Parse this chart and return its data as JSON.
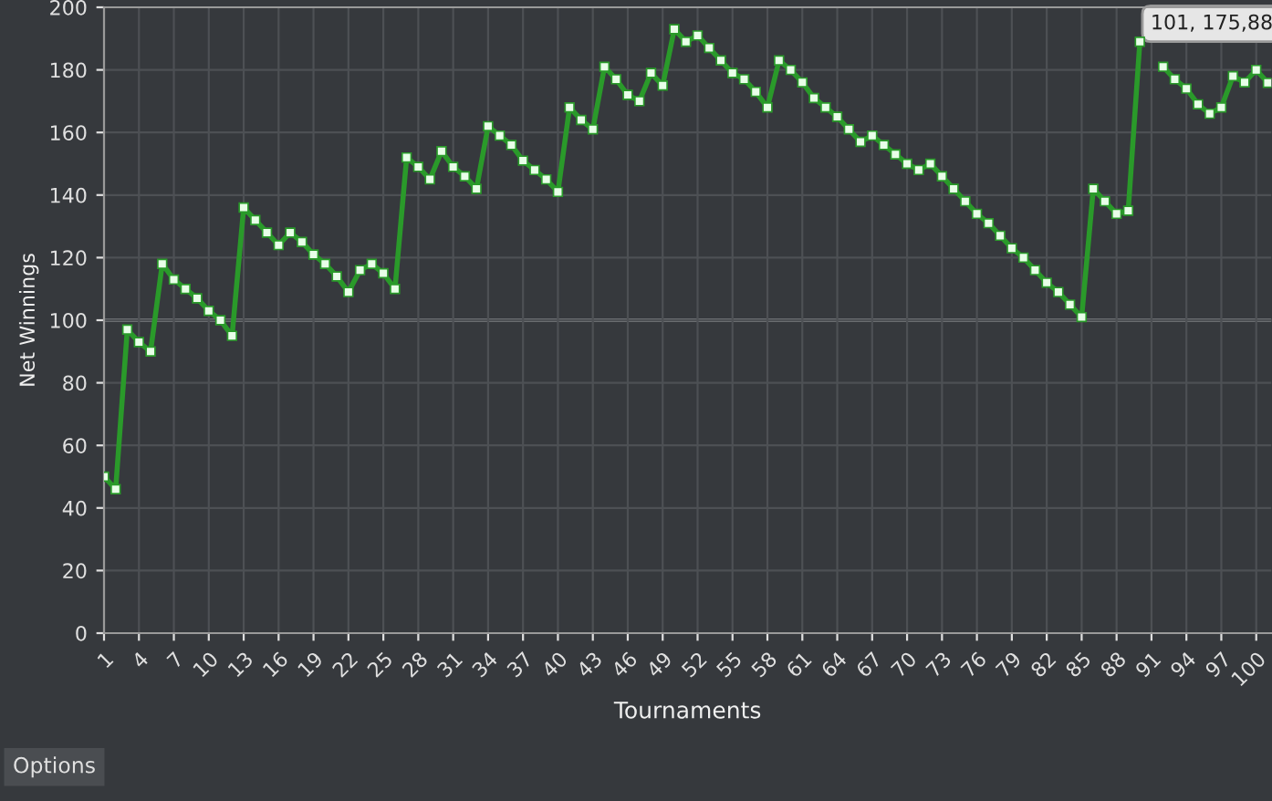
{
  "chart_data": {
    "type": "line",
    "xlabel": "Tournaments",
    "ylabel": "Net Winnings",
    "x": [
      1,
      2,
      3,
      4,
      5,
      6,
      7,
      8,
      9,
      10,
      11,
      12,
      13,
      14,
      15,
      16,
      17,
      18,
      19,
      20,
      21,
      22,
      23,
      24,
      25,
      26,
      27,
      28,
      29,
      30,
      31,
      32,
      33,
      34,
      35,
      36,
      37,
      38,
      39,
      40,
      41,
      42,
      43,
      44,
      45,
      46,
      47,
      48,
      49,
      50,
      51,
      52,
      53,
      54,
      55,
      56,
      57,
      58,
      59,
      60,
      61,
      62,
      63,
      64,
      65,
      66,
      67,
      68,
      69,
      70,
      71,
      72,
      73,
      74,
      75,
      76,
      77,
      78,
      79,
      80,
      81,
      82,
      83,
      84,
      85,
      86,
      87,
      88,
      89,
      90,
      91,
      92,
      93,
      94,
      95,
      96,
      97,
      98,
      99,
      100,
      101
    ],
    "series": [
      {
        "color": "#2a9a2a",
        "values": [
          50,
          46,
          97,
          93,
          90,
          118,
          113,
          110,
          107,
          103,
          100,
          95,
          136,
          132,
          128,
          124,
          128,
          125,
          121,
          118,
          114,
          109,
          116,
          118,
          115,
          110,
          152,
          149,
          145,
          154,
          149,
          146,
          142,
          162,
          159,
          156,
          151,
          148,
          145,
          141,
          168,
          164,
          161,
          181,
          177,
          172,
          170,
          179,
          175,
          193,
          189,
          191,
          187,
          183,
          179,
          177,
          173,
          168,
          183,
          180,
          176,
          171,
          168,
          165,
          161,
          157,
          159,
          156,
          153,
          150,
          148,
          150,
          146,
          142,
          138,
          134,
          131,
          127,
          123,
          120,
          116,
          112,
          109,
          105,
          101,
          142,
          138,
          134,
          135,
          189,
          null,
          181,
          177,
          174,
          169,
          166,
          168,
          178,
          176,
          180,
          175.88
        ]
      }
    ],
    "xlim": [
      1,
      101.3
    ],
    "ylim": [
      0,
      200
    ],
    "xticks": [
      1,
      4,
      7,
      10,
      13,
      16,
      19,
      22,
      25,
      28,
      31,
      34,
      37,
      40,
      43,
      46,
      49,
      52,
      55,
      58,
      61,
      64,
      67,
      70,
      73,
      76,
      79,
      82,
      85,
      88,
      91,
      94,
      97,
      100
    ],
    "yticks": [
      0,
      20,
      40,
      60,
      80,
      100,
      120,
      140,
      160,
      180,
      200
    ],
    "grid": true,
    "marker": "square",
    "line_style": "solid",
    "ref_lines": [
      {
        "axis": "y",
        "value": 100,
        "color": "#6a6d70"
      }
    ],
    "annotations": [
      "101, 175,88",
      "Options"
    ]
  }
}
